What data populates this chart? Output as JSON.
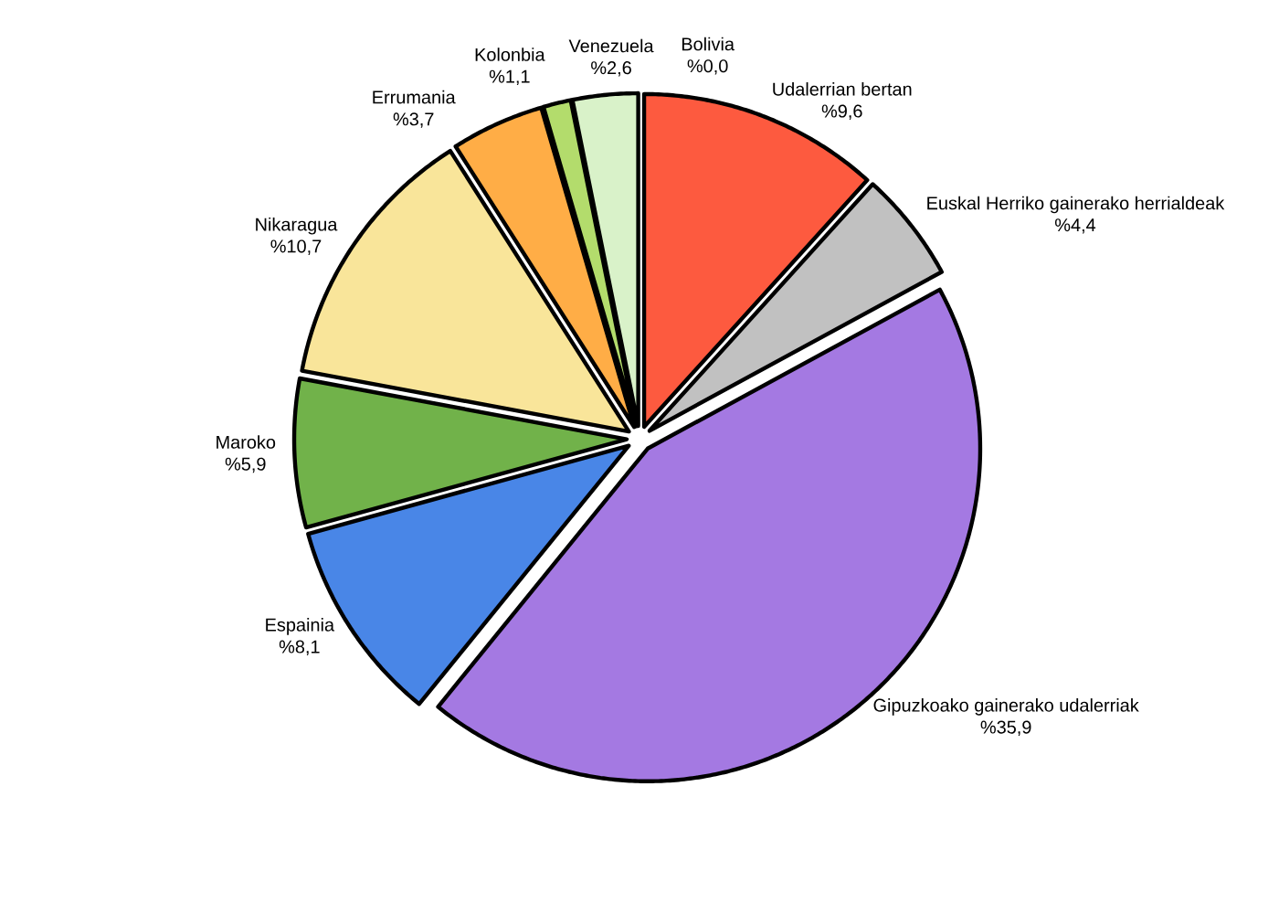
{
  "chart_data": {
    "type": "pie",
    "categories": [
      "Udalerrian bertan",
      "Euskal Herriko gainerako herrialdeak",
      "Gipuzkoako gainerako udalerriak",
      "Espainia",
      "Maroko",
      "Nikaragua",
      "Errumania",
      "Kolonbia",
      "Venezuela",
      "Bolivia"
    ],
    "values": [
      9.6,
      4.4,
      35.9,
      8.1,
      5.9,
      10.7,
      3.7,
      1.1,
      2.6,
      0.0
    ],
    "value_labels": [
      "%9,6",
      "%4,4",
      "%35,9",
      "%8,1",
      "%5,9",
      "%10,7",
      "%3,7",
      "%1,1",
      "%2,6",
      "%0,0"
    ],
    "colors": [
      "#fd5a3f",
      "#c1c1c1",
      "#a479e2",
      "#4986e7",
      "#71b24a",
      "#f9e59a",
      "#ffad46",
      "#b3dc6c",
      "#d9f2c9",
      null
    ]
  }
}
